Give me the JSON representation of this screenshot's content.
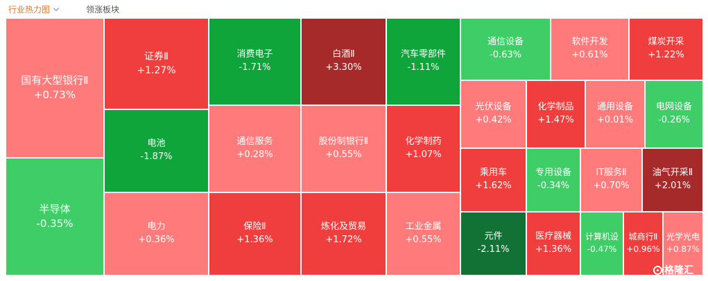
{
  "tabs": {
    "active": "行业热力图",
    "inactive": "领涨板块"
  },
  "logo": {
    "name": "格隆汇",
    "icon": "gelonghui-logo-icon"
  },
  "colors": {
    "up_strong": "#f03e3e",
    "up_weak": "#ff7a7a",
    "up_max": "#a72a2a",
    "down_strong": "#0fa53b",
    "down_weak": "#3fcd67",
    "down_max": "#127236"
  },
  "chart_data": {
    "type": "heatmap",
    "title": "行业热力图",
    "series": [
      {
        "name": "国有大型银行Ⅱ",
        "change": "+0.73%",
        "value": 0.73
      },
      {
        "name": "半导体",
        "change": "-0.35%",
        "value": -0.35
      },
      {
        "name": "证券Ⅱ",
        "change": "+1.27%",
        "value": 1.27
      },
      {
        "name": "电池",
        "change": "-1.87%",
        "value": -1.87
      },
      {
        "name": "电力",
        "change": "+0.36%",
        "value": 0.36
      },
      {
        "name": "消费电子",
        "change": "-1.71%",
        "value": -1.71
      },
      {
        "name": "白酒Ⅱ",
        "change": "+3.30%",
        "value": 3.3
      },
      {
        "name": "通信服务",
        "change": "+0.28%",
        "value": 0.28
      },
      {
        "name": "股份制银行Ⅱ",
        "change": "+0.55%",
        "value": 0.55
      },
      {
        "name": "保险Ⅱ",
        "change": "+1.36%",
        "value": 1.36
      },
      {
        "name": "炼化及贸易",
        "change": "+1.72%",
        "value": 1.72
      },
      {
        "name": "汽车零部件",
        "change": "-1.11%",
        "value": -1.11
      },
      {
        "name": "化学制药",
        "change": "+1.07%",
        "value": 1.07
      },
      {
        "name": "工业金属",
        "change": "+0.55%",
        "value": 0.55
      },
      {
        "name": "通信设备",
        "change": "-0.63%",
        "value": -0.63
      },
      {
        "name": "软件开发",
        "change": "+0.61%",
        "value": 0.61
      },
      {
        "name": "煤炭开采",
        "change": "+1.22%",
        "value": 1.22
      },
      {
        "name": "光伏设备",
        "change": "+0.42%",
        "value": 0.42
      },
      {
        "name": "化学制品",
        "change": "+1.47%",
        "value": 1.47
      },
      {
        "name": "通用设备",
        "change": "+0.01%",
        "value": 0.01
      },
      {
        "name": "电网设备",
        "change": "-0.26%",
        "value": -0.26
      },
      {
        "name": "乘用车",
        "change": "+1.62%",
        "value": 1.62
      },
      {
        "name": "专用设备",
        "change": "-0.34%",
        "value": -0.34
      },
      {
        "name": "IT服务Ⅱ",
        "change": "+0.70%",
        "value": 0.7
      },
      {
        "name": "油气开采Ⅱ",
        "change": "+2.01%",
        "value": 2.01
      },
      {
        "name": "元件",
        "change": "-2.11%",
        "value": -2.11
      },
      {
        "name": "医疗器械",
        "change": "+1.36%",
        "value": 1.36
      },
      {
        "name": "计算机设",
        "change": "-0.47%",
        "value": -0.47
      },
      {
        "name": "城商行Ⅱ",
        "change": "+0.96%",
        "value": 0.96
      },
      {
        "name": "光学光电",
        "change": "+0.87%",
        "value": 0.87
      }
    ]
  }
}
